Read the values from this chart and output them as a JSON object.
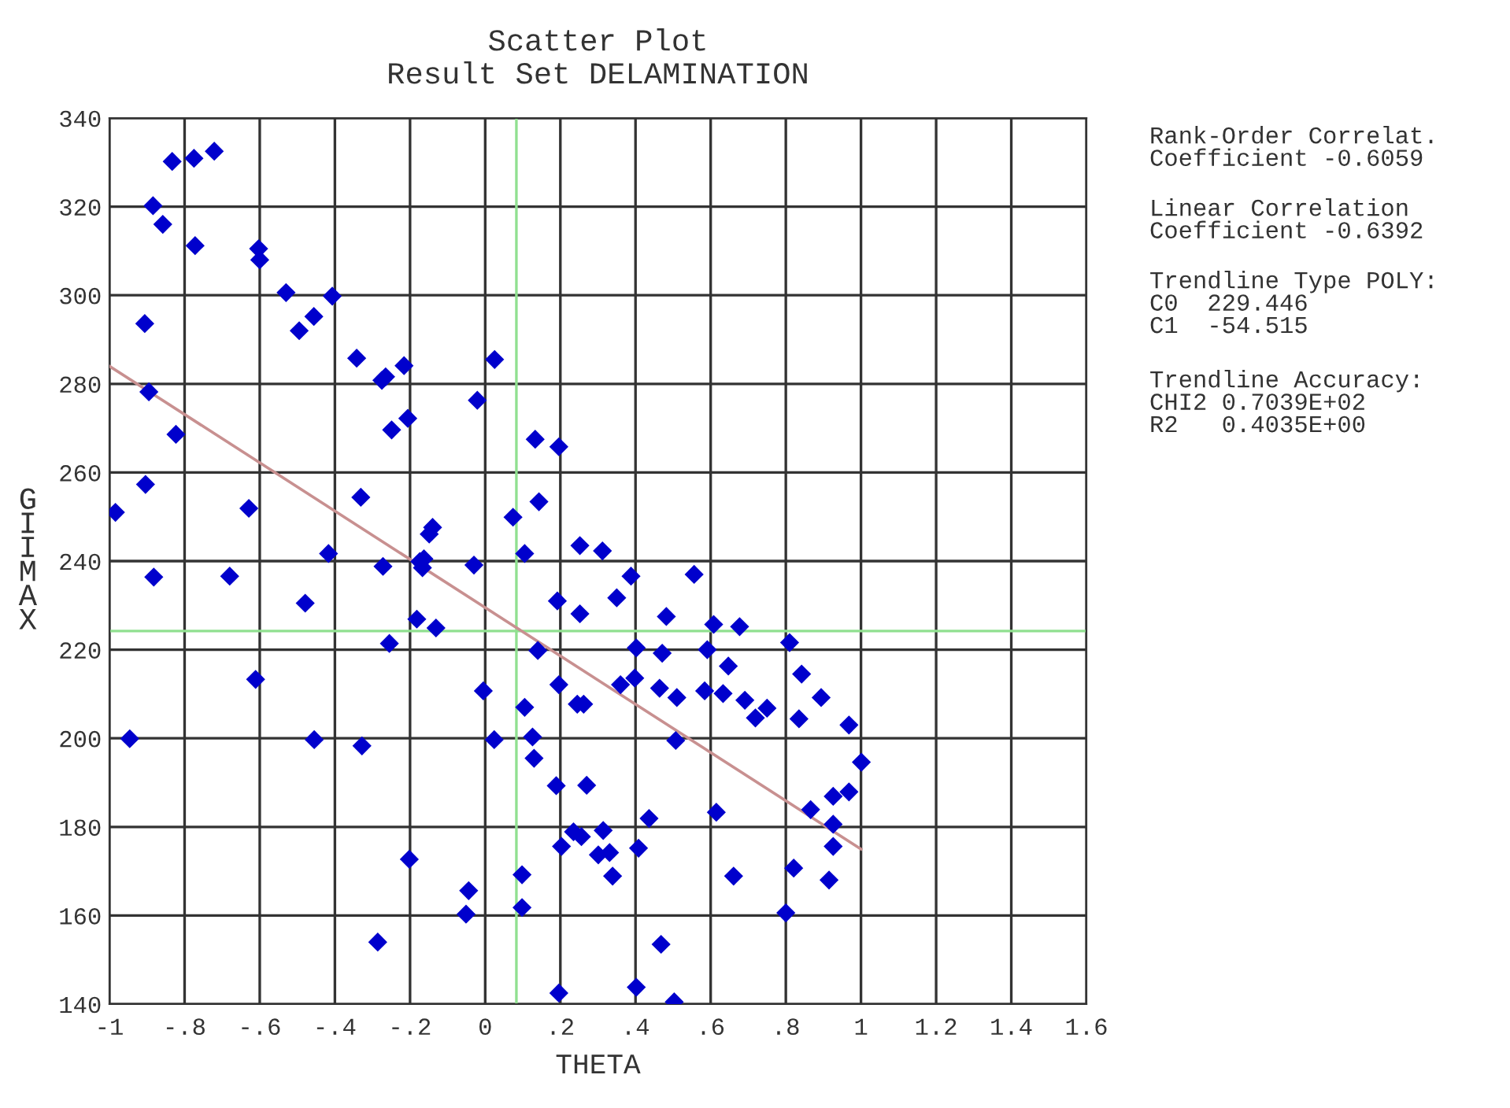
{
  "chart_data": {
    "type": "scatter",
    "title": "Scatter Plot",
    "subtitle": "Result Set DELAMINATION",
    "xlabel": "THETA",
    "ylabel": "GIIMAX",
    "xlim": [
      -1,
      1.6
    ],
    "xticks": [
      -1,
      {
        "value": -0.8,
        "label": "-.8"
      },
      {
        "value": -0.6,
        "label": "-.6"
      },
      {
        "value": -0.4,
        "label": "-.4"
      },
      {
        "value": -0.2,
        "label": "-.2"
      },
      0,
      {
        "value": 0.2,
        "label": ".2"
      },
      {
        "value": 0.4,
        "label": ".4"
      },
      {
        "value": 0.6,
        "label": ".6"
      },
      {
        "value": 0.8,
        "label": ".8"
      },
      1,
      1.2,
      1.4,
      1.6
    ],
    "ylim": [
      140,
      340
    ],
    "yticks": [
      140,
      160,
      180,
      200,
      220,
      240,
      260,
      280,
      300,
      320,
      340
    ],
    "grid": true,
    "legend": false,
    "ref_lines": [
      {
        "axis": "x",
        "value": 0.083,
        "color": "#90e090"
      },
      {
        "axis": "y",
        "value": 224.2,
        "color": "#90e090"
      }
    ],
    "series": [
      {
        "color": "#0000cc",
        "marker": "diamond",
        "x": [
          -0.833,
          -0.775,
          -0.721,
          -0.884,
          -0.858,
          -0.772,
          -0.603,
          -0.6,
          -0.53,
          -0.407,
          -0.495,
          -0.456,
          -0.906,
          -0.342,
          -0.275,
          -0.265,
          -0.216,
          0.025,
          -0.895,
          -0.021,
          -0.249,
          -0.206,
          -0.823,
          -0.904,
          -0.984,
          -0.629,
          -0.331,
          -0.14,
          -0.149,
          -0.417,
          -0.882,
          -0.68,
          -0.272,
          -0.163,
          -0.167,
          -0.174,
          -0.03,
          -0.479,
          -0.182,
          -0.131,
          -0.255,
          -0.611,
          -0.005,
          -0.946,
          -0.455,
          -0.328,
          0.024,
          -0.202,
          -0.044,
          -0.051,
          -0.286,
          0.133,
          0.196,
          0.143,
          0.074,
          0.252,
          0.312,
          0.105,
          0.388,
          0.556,
          0.192,
          0.35,
          0.252,
          0.482,
          0.608,
          0.677,
          0.81,
          0.14,
          0.402,
          0.471,
          0.591,
          0.647,
          0.842,
          0.196,
          0.36,
          0.398,
          0.464,
          0.51,
          0.584,
          0.633,
          0.691,
          0.719,
          0.75,
          0.894,
          0.105,
          0.245,
          0.262,
          0.835,
          0.968,
          0.126,
          0.507,
          0.13,
          1.001,
          0.189,
          0.27,
          0.968,
          0.926,
          0.866,
          0.615,
          0.436,
          0.926,
          0.235,
          0.256,
          0.314,
          0.203,
          0.408,
          0.926,
          0.301,
          0.331,
          0.098,
          0.339,
          0.661,
          0.821,
          0.915,
          0.8,
          0.098,
          0.468,
          0.196,
          0.402,
          0.503
        ],
        "values": [
          330.2,
          330.9,
          332.5,
          320.2,
          316,
          311.2,
          310.5,
          308,
          300.6,
          299.8,
          292,
          295.2,
          293.6,
          285.8,
          280.8,
          281.6,
          284.1,
          285.5,
          278.2,
          276.3,
          269.6,
          272.2,
          268.6,
          257.3,
          251,
          251.9,
          254.4,
          247.6,
          246.1,
          241.7,
          236.4,
          236.6,
          238.8,
          240.5,
          238.5,
          239.9,
          239.1,
          230.5,
          226.9,
          224.9,
          221.4,
          213.3,
          210.7,
          199.9,
          199.7,
          198.3,
          199.7,
          172.7,
          165.6,
          160.3,
          154,
          267.5,
          265.8,
          253.4,
          249.9,
          243.5,
          242.3,
          241.7,
          236.6,
          237,
          231,
          231.7,
          228.1,
          227.5,
          225.7,
          225.2,
          221.6,
          219.8,
          220.4,
          219.2,
          220,
          216.3,
          214.5,
          212.1,
          212.1,
          213.6,
          211.3,
          209.2,
          210.7,
          210.1,
          208.6,
          204.6,
          206.8,
          209.2,
          207,
          207.7,
          207.7,
          204.4,
          203,
          200.3,
          199.5,
          195.5,
          194.6,
          189.3,
          189.4,
          187.9,
          186.9,
          183.9,
          183.3,
          181.9,
          180.6,
          178.9,
          177.8,
          179.2,
          175.6,
          175.2,
          175.6,
          173.7,
          174.2,
          169.2,
          168.9,
          168.9,
          170.7,
          168,
          160.6,
          161.8,
          153.5,
          142.5,
          143.8,
          140.5
        ]
      },
      {
        "type": "line",
        "color": "#c89090",
        "marker": "none",
        "x": [
          -1,
          1
        ],
        "values": [
          284,
          175
        ]
      }
    ],
    "annotations": [
      "Rank-Order Correlat.\nCoefficient -0.6059",
      "Linear Correlation\nCoefficient -0.6392",
      "Trendline Type POLY:\nC0  229.446\nC1  -54.515",
      "Trendline Accuracy:\nCHI2 0.7039E+02\nR2   0.4035E+00"
    ]
  }
}
